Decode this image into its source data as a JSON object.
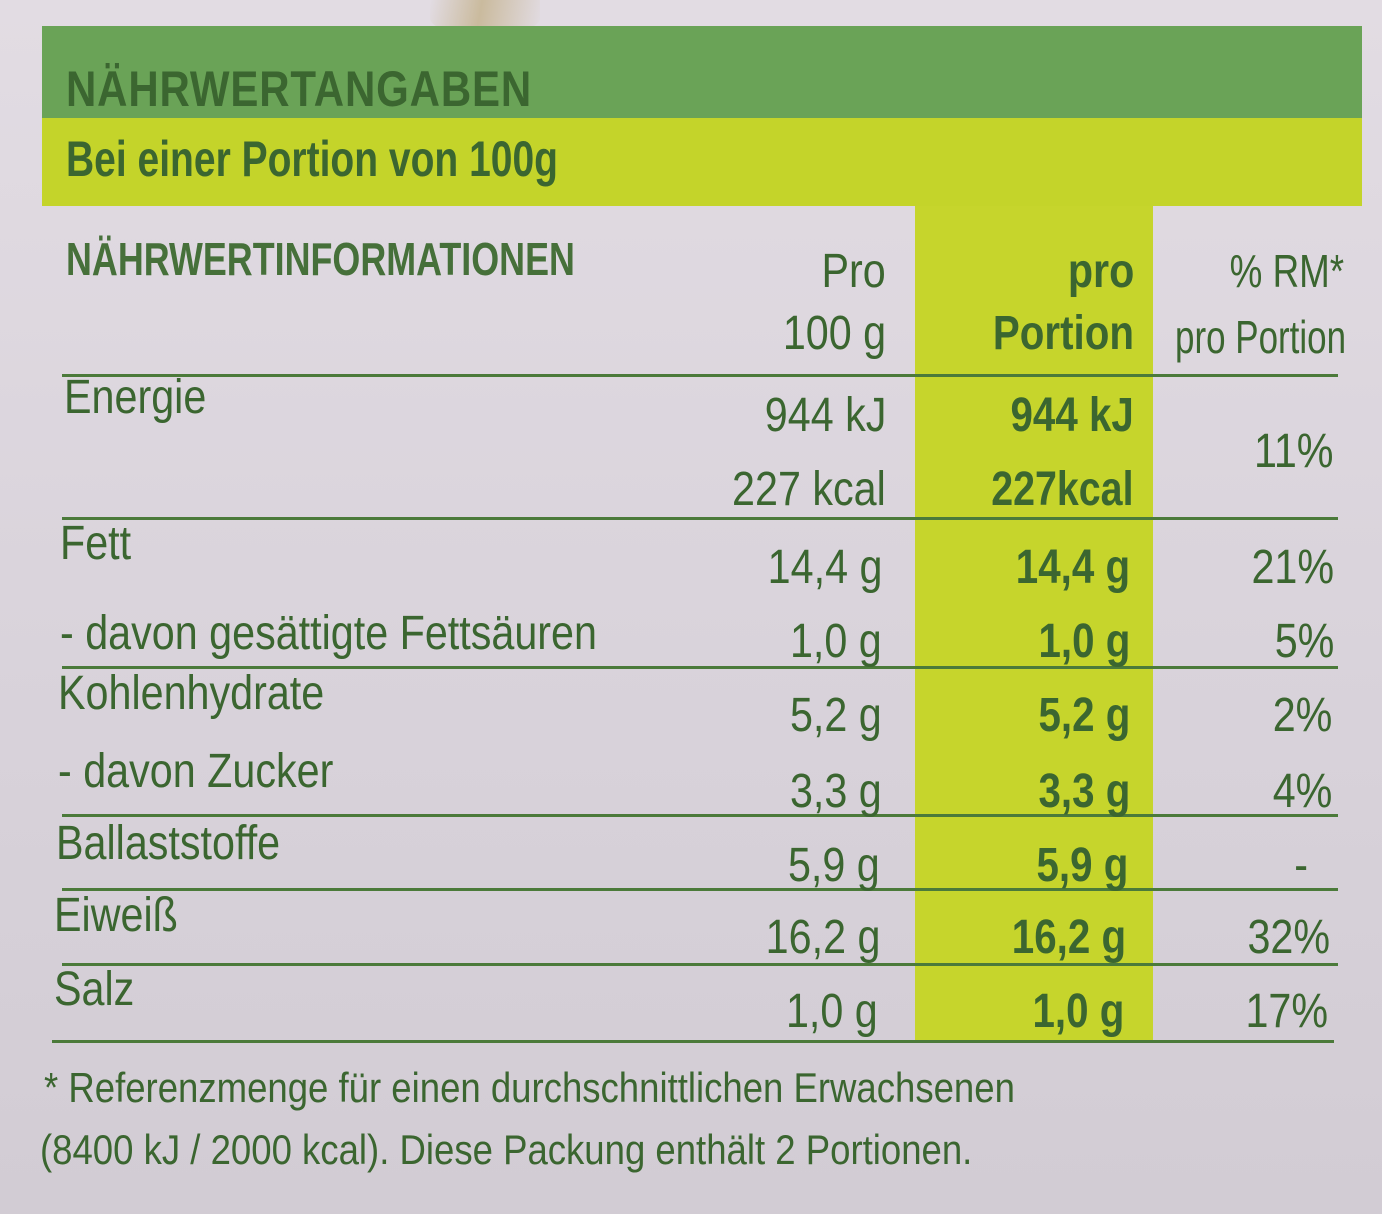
{
  "header": {
    "title": "NÄHRWERTANGABEN",
    "subtitle": "Bei einer Portion von 100g"
  },
  "table": {
    "col_headers": {
      "name": "NÄHRWERTINFORMATIONEN",
      "per100_line1": "Pro",
      "per100_line2": "100 g",
      "portion_line1": "pro",
      "portion_line2": "Portion",
      "rm_line1": "% RM*",
      "rm_line2": "pro Portion"
    },
    "rows": [
      {
        "name": "Energie",
        "per100": "944 kJ",
        "portion": "944 kJ",
        "rm": "11%"
      },
      {
        "name": "",
        "per100": "227 kcal",
        "portion": "227kcal",
        "rm": ""
      },
      {
        "name": "Fett",
        "per100": "14,4 g",
        "portion": "14,4 g",
        "rm": "21%"
      },
      {
        "name": "- davon gesättigte Fettsäuren",
        "per100": "1,0 g",
        "portion": "1,0 g",
        "rm": "5%"
      },
      {
        "name": "Kohlenhydrate",
        "per100": "5,2 g",
        "portion": "5,2 g",
        "rm": "2%"
      },
      {
        "name": "- davon Zucker",
        "per100": "3,3 g",
        "portion": "3,3 g",
        "rm": "4%"
      },
      {
        "name": "Ballaststoffe",
        "per100": "5,9 g",
        "portion": "5,9 g",
        "rm": "-"
      },
      {
        "name": "Eiweiß",
        "per100": "16,2 g",
        "portion": "16,2 g",
        "rm": "32%"
      },
      {
        "name": "Salz",
        "per100": "1,0 g",
        "portion": "1,0 g",
        "rm": "17%"
      }
    ]
  },
  "footnote": {
    "line1": "* Referenzmenge für einen durchschnittlichen Erwachsenen",
    "line2": "(8400 kJ / 2000 kcal). Diese Packung enthält 2 Portionen."
  },
  "colors": {
    "header_green": "#6aa357",
    "header_yellow": "#c4d42a",
    "text_green": "#3b6630",
    "highlight_column": "#c6d52c",
    "background": "#dcd6dd"
  }
}
